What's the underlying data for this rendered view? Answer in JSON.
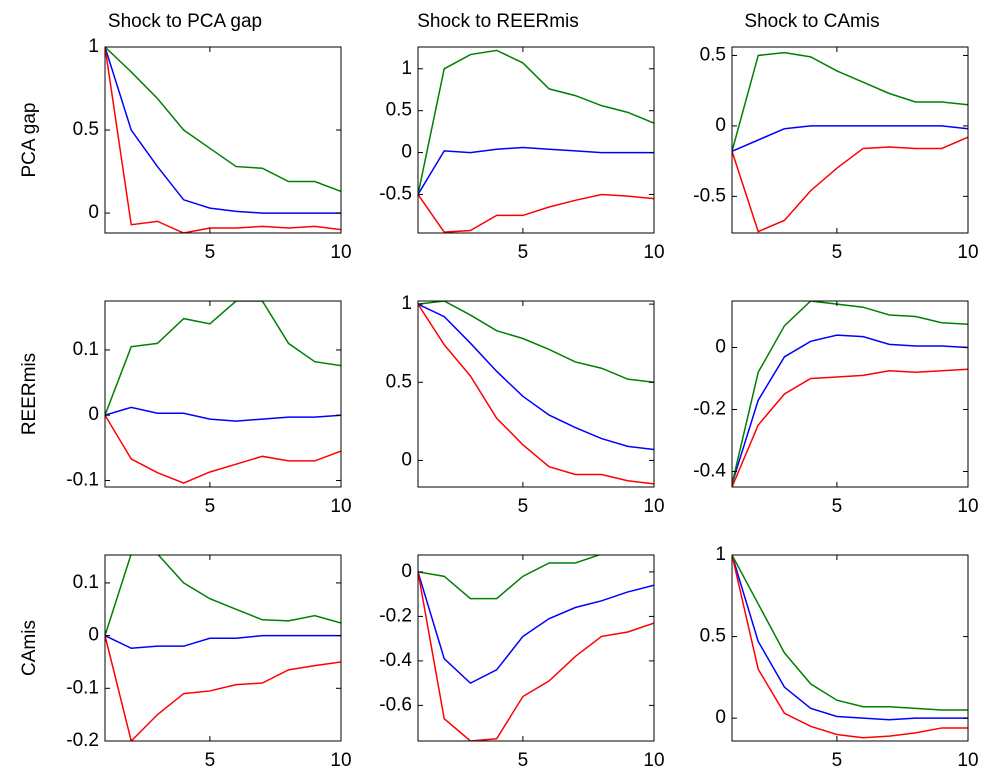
{
  "chart_data": [
    {
      "type": "line",
      "title": "Shock to PCA gap",
      "ylabel": "PCA gap",
      "x": [
        1,
        2,
        3,
        4,
        5,
        6,
        7,
        8,
        9,
        10
      ],
      "xlim": [
        1,
        10
      ],
      "xticks": [
        5,
        10
      ],
      "ylim": [
        -0.12,
        1
      ],
      "yticks": [
        0,
        0.5,
        1
      ],
      "series": [
        {
          "color": "#0000ff",
          "values": [
            1,
            0.5,
            0.28,
            0.08,
            0.03,
            0.01,
            0,
            0,
            0,
            0
          ]
        },
        {
          "color": "#ff0000",
          "values": [
            1,
            -0.07,
            -0.05,
            -0.12,
            -0.09,
            -0.09,
            -0.08,
            -0.09,
            -0.08,
            -0.1
          ]
        },
        {
          "color": "#008000",
          "values": [
            1,
            0.85,
            0.69,
            0.5,
            0.39,
            0.28,
            0.27,
            0.19,
            0.19,
            0.13
          ]
        }
      ]
    },
    {
      "type": "line",
      "title": "Shock to REERmis",
      "x": [
        1,
        2,
        3,
        4,
        5,
        6,
        7,
        8,
        9,
        10
      ],
      "xlim": [
        1,
        10
      ],
      "xticks": [
        5,
        10
      ],
      "ylim": [
        -0.96,
        1.26
      ],
      "yticks": [
        -0.5,
        0,
        0.5,
        1
      ],
      "series": [
        {
          "color": "#0000ff",
          "values": [
            -0.5,
            0.02,
            0,
            0.04,
            0.06,
            0.04,
            0.02,
            0,
            0,
            0
          ]
        },
        {
          "color": "#ff0000",
          "values": [
            -0.5,
            -0.95,
            -0.93,
            -0.75,
            -0.75,
            -0.65,
            -0.57,
            -0.5,
            -0.52,
            -0.55
          ]
        },
        {
          "color": "#008000",
          "values": [
            -0.5,
            1.0,
            1.17,
            1.22,
            1.07,
            0.76,
            0.68,
            0.56,
            0.48,
            0.35
          ]
        }
      ]
    },
    {
      "type": "line",
      "title": "Shock to CAmis",
      "x": [
        1,
        2,
        3,
        4,
        5,
        6,
        7,
        8,
        9,
        10
      ],
      "xlim": [
        1,
        10
      ],
      "xticks": [
        5,
        10
      ],
      "ylim": [
        -0.76,
        0.56
      ],
      "yticks": [
        -0.5,
        0,
        0.5
      ],
      "series": [
        {
          "color": "#0000ff",
          "values": [
            -0.18,
            -0.1,
            -0.02,
            0,
            0,
            0,
            0,
            0,
            0,
            -0.02
          ]
        },
        {
          "color": "#ff0000",
          "values": [
            -0.18,
            -0.75,
            -0.67,
            -0.46,
            -0.3,
            -0.16,
            -0.15,
            -0.16,
            -0.16,
            -0.08
          ]
        },
        {
          "color": "#008000",
          "values": [
            -0.18,
            0.5,
            0.52,
            0.49,
            0.39,
            0.31,
            0.23,
            0.17,
            0.17,
            0.15
          ]
        }
      ]
    },
    {
      "type": "line",
      "ylabel": "REERmis",
      "x": [
        1,
        2,
        3,
        4,
        5,
        6,
        7,
        8,
        9,
        10
      ],
      "xlim": [
        1,
        10
      ],
      "xticks": [
        5,
        10
      ],
      "ylim": [
        -0.11,
        0.175
      ],
      "yticks": [
        -0.1,
        0,
        0.1
      ],
      "series": [
        {
          "color": "#0000ff",
          "values": [
            0,
            0.012,
            0.003,
            0.003,
            -0.006,
            -0.009,
            -0.006,
            -0.003,
            -0.003,
            0
          ]
        },
        {
          "color": "#ff0000",
          "values": [
            0,
            -0.067,
            -0.088,
            -0.104,
            -0.087,
            -0.075,
            -0.063,
            -0.07,
            -0.07,
            -0.055
          ]
        },
        {
          "color": "#008000",
          "values": [
            0,
            0.105,
            0.11,
            0.148,
            0.14,
            0.175,
            0.175,
            0.11,
            0.082,
            0.076
          ]
        }
      ]
    },
    {
      "type": "line",
      "x": [
        1,
        2,
        3,
        4,
        5,
        6,
        7,
        8,
        9,
        10
      ],
      "xlim": [
        1,
        10
      ],
      "xticks": [
        5,
        10
      ],
      "ylim": [
        -0.17,
        1.02
      ],
      "yticks": [
        0,
        0.5,
        1
      ],
      "series": [
        {
          "color": "#0000ff",
          "values": [
            1,
            0.92,
            0.75,
            0.57,
            0.41,
            0.29,
            0.21,
            0.14,
            0.09,
            0.07
          ]
        },
        {
          "color": "#ff0000",
          "values": [
            1,
            0.74,
            0.54,
            0.27,
            0.1,
            -0.04,
            -0.09,
            -0.09,
            -0.13,
            -0.15
          ]
        },
        {
          "color": "#008000",
          "values": [
            1,
            1.02,
            0.93,
            0.83,
            0.78,
            0.71,
            0.63,
            0.59,
            0.52,
            0.5
          ]
        }
      ]
    },
    {
      "type": "line",
      "x": [
        1,
        2,
        3,
        4,
        5,
        6,
        7,
        8,
        9,
        10
      ],
      "xlim": [
        1,
        10
      ],
      "xticks": [
        5,
        10
      ],
      "ylim": [
        -0.45,
        0.15
      ],
      "yticks": [
        -0.4,
        -0.2,
        0
      ],
      "series": [
        {
          "color": "#0000ff",
          "values": [
            -0.44,
            -0.17,
            -0.03,
            0.02,
            0.04,
            0.035,
            0.01,
            0.005,
            0.005,
            0
          ]
        },
        {
          "color": "#ff0000",
          "values": [
            -0.45,
            -0.25,
            -0.15,
            -0.1,
            -0.095,
            -0.09,
            -0.075,
            -0.08,
            -0.075,
            -0.07
          ]
        },
        {
          "color": "#008000",
          "values": [
            -0.44,
            -0.08,
            0.07,
            0.15,
            0.14,
            0.13,
            0.105,
            0.1,
            0.08,
            0.075
          ]
        }
      ]
    },
    {
      "type": "line",
      "ylabel": "CAmis",
      "x": [
        1,
        2,
        3,
        4,
        5,
        6,
        7,
        8,
        9,
        10
      ],
      "xlim": [
        1,
        10
      ],
      "xticks": [
        5,
        10
      ],
      "ylim": [
        -0.2,
        0.153
      ],
      "yticks": [
        -0.2,
        -0.1,
        0,
        0.1
      ],
      "series": [
        {
          "color": "#0000ff",
          "values": [
            0,
            -0.024,
            -0.02,
            -0.02,
            -0.005,
            -0.005,
            0,
            0,
            0,
            0
          ]
        },
        {
          "color": "#ff0000",
          "values": [
            0,
            -0.2,
            -0.15,
            -0.11,
            -0.105,
            -0.093,
            -0.09,
            -0.065,
            -0.057,
            -0.05
          ]
        },
        {
          "color": "#008000",
          "values": [
            0,
            0.155,
            0.155,
            0.1,
            0.07,
            0.05,
            0.03,
            0.028,
            0.038,
            0.024
          ]
        }
      ]
    },
    {
      "type": "line",
      "x": [
        1,
        2,
        3,
        4,
        5,
        6,
        7,
        8,
        9,
        10
      ],
      "xlim": [
        1,
        10
      ],
      "xticks": [
        5,
        10
      ],
      "ylim": [
        -0.76,
        0.076
      ],
      "yticks": [
        -0.6,
        -0.4,
        -0.2,
        0
      ],
      "series": [
        {
          "color": "#0000ff",
          "values": [
            0,
            -0.39,
            -0.5,
            -0.44,
            -0.29,
            -0.21,
            -0.16,
            -0.13,
            -0.09,
            -0.06
          ]
        },
        {
          "color": "#ff0000",
          "values": [
            0,
            -0.66,
            -0.76,
            -0.75,
            -0.56,
            -0.49,
            -0.38,
            -0.29,
            -0.27,
            -0.23
          ]
        },
        {
          "color": "#008000",
          "values": [
            0,
            -0.02,
            -0.12,
            -0.12,
            -0.02,
            0.04,
            0.04,
            0.08,
            0.08,
            0.08
          ]
        }
      ]
    },
    {
      "type": "line",
      "x": [
        1,
        2,
        3,
        4,
        5,
        6,
        7,
        8,
        9,
        10
      ],
      "xlim": [
        1,
        10
      ],
      "xticks": [
        5,
        10
      ],
      "ylim": [
        -0.14,
        1
      ],
      "yticks": [
        0,
        0.5,
        1
      ],
      "series": [
        {
          "color": "#0000ff",
          "values": [
            1,
            0.47,
            0.19,
            0.06,
            0.01,
            0,
            -0.01,
            0,
            0,
            0
          ]
        },
        {
          "color": "#ff0000",
          "values": [
            1,
            0.3,
            0.03,
            -0.05,
            -0.1,
            -0.12,
            -0.11,
            -0.09,
            -0.06,
            -0.06
          ]
        },
        {
          "color": "#008000",
          "values": [
            1,
            0.7,
            0.4,
            0.21,
            0.11,
            0.07,
            0.07,
            0.06,
            0.05,
            0.05
          ]
        }
      ]
    }
  ]
}
